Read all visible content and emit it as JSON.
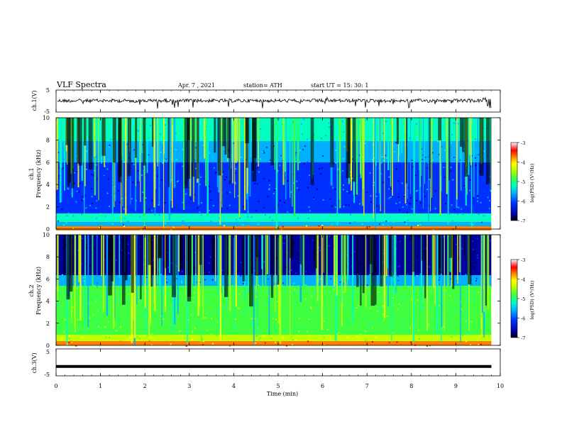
{
  "header": {
    "title": "VLF  Spectra",
    "date": "Apr. 7  , 2021",
    "station": "station= ATH",
    "start": "start  UT  =    15: 30: 1"
  },
  "chart_data": [
    {
      "type": "line",
      "id": "ch1",
      "ylabel": "ch.1(V)",
      "ylim": [
        -5,
        5
      ],
      "yticks": [
        "5",
        "-5"
      ],
      "description_values": "waveform around 0 V with spikes"
    },
    {
      "type": "heatmap",
      "id": "ch1-spec",
      "ylabel_line1": "ch.1",
      "ylabel_line2": "Frequency (kHz)",
      "ylim": [
        0,
        10
      ],
      "yticks": [
        "0",
        "2",
        "4",
        "6",
        "8",
        "10"
      ],
      "colorbar": {
        "label": "log(PSD) (V²/Hz)",
        "ticks": [
          "-3",
          "-4",
          "-5",
          "-6",
          "-7"
        ],
        "range": [
          -7,
          -3
        ]
      }
    },
    {
      "type": "heatmap",
      "id": "ch2-spec",
      "ylabel_line1": "ch.2",
      "ylabel_line2": "Frequency (kHz)",
      "ylim": [
        0,
        10
      ],
      "yticks": [
        "0",
        "2",
        "4",
        "6",
        "8",
        "10"
      ],
      "colorbar": {
        "label": "log(PSD) (V²/Hz)",
        "ticks": [
          "-3",
          "-4",
          "-5",
          "-6",
          "-7"
        ],
        "range": [
          -7,
          -3
        ]
      }
    },
    {
      "type": "line",
      "id": "ch3",
      "ylabel": "ch.3(V)",
      "ylim": [
        -5,
        5
      ],
      "yticks": [
        "5",
        "-5"
      ],
      "x": [
        0,
        9.8
      ],
      "values": [
        -1.5,
        -1.5
      ]
    }
  ],
  "xaxis": {
    "label": "Time  (min)",
    "ticks": [
      "0",
      "1",
      "2",
      "3",
      "4",
      "5",
      "6",
      "7",
      "8",
      "9",
      "10"
    ],
    "range": [
      0,
      10
    ],
    "data_end": 9.8
  },
  "colors": {
    "cmap": [
      "#000000",
      "#0000a0",
      "#0030ff",
      "#00b0ff",
      "#00ffc0",
      "#40ff40",
      "#c0ff00",
      "#ffff00",
      "#ff8000",
      "#ff0000",
      "#ff9090",
      "#ffffff"
    ]
  }
}
